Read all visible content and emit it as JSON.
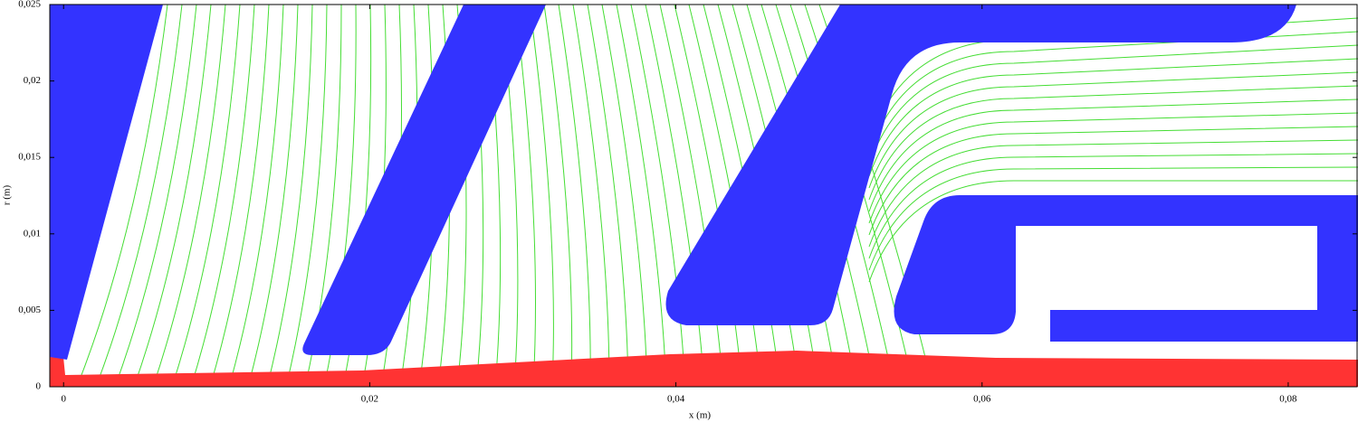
{
  "chart_data": {
    "type": "field",
    "x_label": "x (m)",
    "y_label": "r (m)",
    "xlim": [
      -0.0009,
      0.0845
    ],
    "ylim": [
      0,
      0.025
    ],
    "xticks": [
      0,
      {
        "value": 0.02,
        "label": "0,02"
      },
      {
        "value": 0.04,
        "label": "0,04"
      },
      {
        "value": 0.06,
        "label": "0,06"
      },
      {
        "value": 0.08,
        "label": "0,08"
      }
    ],
    "yticks": [
      0,
      {
        "value": 0.005,
        "label": "0,005"
      },
      {
        "value": 0.01,
        "label": "0,01"
      },
      {
        "value": 0.015,
        "label": "0,015"
      },
      {
        "value": 0.02,
        "label": "0,02"
      },
      {
        "value": 0.025,
        "label": "0,025"
      }
    ]
  }
}
